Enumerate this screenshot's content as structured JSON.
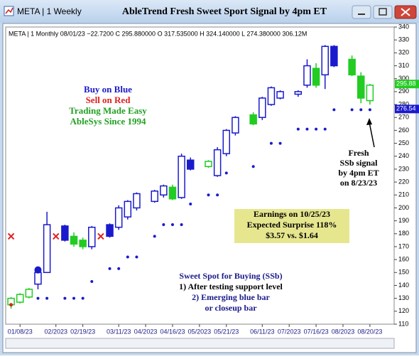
{
  "window_title": "META | 1 Weekly",
  "chart_data": {
    "type": "candlestick",
    "title": "AbleTrend Fresh Sweet Sport Signal by 4pm ET",
    "info": "META | 1 Monthly 08/01/23 −22.7200 C 295.880000 O 317.535000 H 324.140000 L 274.380000 306.12M",
    "xlim": [
      -0.6,
      42.7
    ],
    "xticks": [
      {
        "value": 1,
        "label": "01/08/23"
      },
      {
        "value": 5,
        "label": "02/2023"
      },
      {
        "value": 8,
        "label": "02/19/23"
      },
      {
        "value": 12,
        "label": "03/11/23"
      },
      {
        "value": 15,
        "label": "04/2023"
      },
      {
        "value": 18,
        "label": "04/16/23"
      },
      {
        "value": 21,
        "label": "05/2023"
      },
      {
        "value": 24,
        "label": "05/21/23"
      },
      {
        "value": 28,
        "label": "06/11/23"
      },
      {
        "value": 31,
        "label": "07/2023"
      },
      {
        "value": 34,
        "label": "07/16/23"
      },
      {
        "value": 37,
        "label": "08/2023"
      },
      {
        "value": 40,
        "label": "08/20/23"
      }
    ],
    "ylim": [
      110,
      340
    ],
    "yticks": [
      110,
      120,
      130,
      140,
      150,
      160,
      170,
      180,
      190,
      200,
      210,
      220,
      230,
      240,
      250,
      260,
      270,
      280,
      290,
      300,
      310,
      320,
      330,
      340
    ],
    "candles": [
      {
        "x": 0,
        "open": 125,
        "high": 131,
        "low": 122,
        "close": 130,
        "color": "#22cc22",
        "filled": false
      },
      {
        "x": 1,
        "open": 127,
        "high": 134,
        "low": 126,
        "close": 133,
        "color": "#22cc22",
        "filled": false
      },
      {
        "x": 2,
        "open": 131,
        "high": 138,
        "low": 130,
        "close": 137,
        "color": "#22cc22",
        "filled": false
      },
      {
        "x": 3,
        "open": 141,
        "high": 152,
        "low": 137,
        "close": 150,
        "color": "#1a1acc",
        "filled": false
      },
      {
        "x": 4,
        "open": 150,
        "high": 197,
        "low": 150,
        "close": 187,
        "color": "#1a1acc",
        "filled": false
      },
      {
        "x": 6,
        "open": 186,
        "high": 187,
        "low": 174,
        "close": 175,
        "color": "#1a1acc",
        "filled": true
      },
      {
        "x": 7,
        "open": 178,
        "high": 181,
        "low": 170,
        "close": 172,
        "color": "#22cc22",
        "filled": true
      },
      {
        "x": 8,
        "open": 175,
        "high": 177,
        "low": 168,
        "close": 170,
        "color": "#22cc22",
        "filled": true
      },
      {
        "x": 9,
        "open": 170,
        "high": 186,
        "low": 168,
        "close": 185,
        "color": "#1a1acc",
        "filled": false
      },
      {
        "x": 11,
        "open": 187,
        "high": 188,
        "low": 177,
        "close": 178,
        "color": "#1a1acc",
        "filled": true
      },
      {
        "x": 12,
        "open": 185,
        "high": 202,
        "low": 183,
        "close": 200,
        "color": "#1a1acc",
        "filled": false
      },
      {
        "x": 13,
        "open": 193,
        "high": 206,
        "low": 191,
        "close": 205,
        "color": "#1a1acc",
        "filled": false
      },
      {
        "x": 14,
        "open": 200,
        "high": 212,
        "low": 198,
        "close": 211,
        "color": "#1a1acc",
        "filled": false
      },
      {
        "x": 16,
        "open": 205,
        "high": 214,
        "low": 204,
        "close": 213,
        "color": "#1a1acc",
        "filled": false
      },
      {
        "x": 17,
        "open": 210,
        "high": 218,
        "low": 208,
        "close": 217,
        "color": "#1a1acc",
        "filled": false
      },
      {
        "x": 18,
        "open": 216,
        "high": 218,
        "low": 206,
        "close": 207,
        "color": "#22cc22",
        "filled": true
      },
      {
        "x": 19,
        "open": 208,
        "high": 242,
        "low": 207,
        "close": 240,
        "color": "#1a1acc",
        "filled": false
      },
      {
        "x": 20,
        "open": 237,
        "high": 239,
        "low": 229,
        "close": 230,
        "color": "#1a1acc",
        "filled": true
      },
      {
        "x": 22,
        "open": 232,
        "high": 237,
        "low": 231,
        "close": 236,
        "color": "#22cc22",
        "filled": false
      },
      {
        "x": 23,
        "open": 225,
        "high": 247,
        "low": 224,
        "close": 245,
        "color": "#1a1acc",
        "filled": false
      },
      {
        "x": 24,
        "open": 242,
        "high": 261,
        "low": 240,
        "close": 260,
        "color": "#1a1acc",
        "filled": false
      },
      {
        "x": 25,
        "open": 258,
        "high": 271,
        "low": 256,
        "close": 270,
        "color": "#1a1acc",
        "filled": false
      },
      {
        "x": 27,
        "open": 272,
        "high": 274,
        "low": 264,
        "close": 265,
        "color": "#22cc22",
        "filled": true
      },
      {
        "x": 28,
        "open": 270,
        "high": 286,
        "low": 268,
        "close": 285,
        "color": "#1a1acc",
        "filled": false
      },
      {
        "x": 29,
        "open": 280,
        "high": 294,
        "low": 279,
        "close": 293,
        "color": "#1a1acc",
        "filled": false
      },
      {
        "x": 30,
        "open": 285,
        "high": 291,
        "low": 284,
        "close": 290,
        "color": "#1a1acc",
        "filled": false
      },
      {
        "x": 32,
        "open": 288,
        "high": 291,
        "low": 286,
        "close": 290,
        "color": "#1a1acc",
        "filled": false
      },
      {
        "x": 33,
        "open": 295,
        "high": 315,
        "low": 293,
        "close": 310,
        "color": "#1a1acc",
        "filled": false
      },
      {
        "x": 34,
        "open": 308,
        "high": 312,
        "low": 293,
        "close": 295,
        "color": "#22cc22",
        "filled": true
      },
      {
        "x": 35,
        "open": 303,
        "high": 326,
        "low": 292,
        "close": 325,
        "color": "#1a1acc",
        "filled": false
      },
      {
        "x": 36,
        "open": 325,
        "high": 326,
        "low": 309,
        "close": 310,
        "color": "#1a1acc",
        "filled": true
      },
      {
        "x": 38,
        "open": 315,
        "high": 318,
        "low": 302,
        "close": 303,
        "color": "#22cc22",
        "filled": true
      },
      {
        "x": 39,
        "open": 302,
        "high": 305,
        "low": 281,
        "close": 285,
        "color": "#22cc22",
        "filled": true
      },
      {
        "x": 40,
        "open": 283,
        "high": 296,
        "low": 280,
        "close": 295,
        "color": "#22cc22",
        "filled": false
      }
    ],
    "dots": {
      "color": "#1a1acc",
      "points": [
        {
          "x": 3,
          "value": 130
        },
        {
          "x": 4,
          "value": 130
        },
        {
          "x": 6,
          "value": 130
        },
        {
          "x": 7,
          "value": 130
        },
        {
          "x": 8,
          "value": 130
        },
        {
          "x": 9,
          "value": 143
        },
        {
          "x": 11,
          "value": 153
        },
        {
          "x": 12,
          "value": 153
        },
        {
          "x": 13,
          "value": 162
        },
        {
          "x": 14,
          "value": 162
        },
        {
          "x": 16,
          "value": 178
        },
        {
          "x": 17,
          "value": 187
        },
        {
          "x": 18,
          "value": 187
        },
        {
          "x": 19,
          "value": 187
        },
        {
          "x": 20,
          "value": 203
        },
        {
          "x": 22,
          "value": 210
        },
        {
          "x": 23,
          "value": 210
        },
        {
          "x": 24,
          "value": 227
        },
        {
          "x": 27,
          "value": 232
        },
        {
          "x": 29,
          "value": 250
        },
        {
          "x": 30,
          "value": 250
        },
        {
          "x": 32,
          "value": 261
        },
        {
          "x": 33,
          "value": 261
        },
        {
          "x": 34,
          "value": 261
        },
        {
          "x": 35,
          "value": 261
        },
        {
          "x": 36,
          "value": 276
        },
        {
          "x": 38,
          "value": 276
        },
        {
          "x": 39,
          "value": 276
        },
        {
          "x": 40,
          "value": 276
        }
      ]
    },
    "sell_marks": {
      "color": "#e02020",
      "points": [
        {
          "x": 0,
          "value": 178
        },
        {
          "x": 5,
          "value": 178
        },
        {
          "x": 10,
          "value": 178
        }
      ]
    },
    "signal_dots": [
      {
        "x": 0,
        "value": 125,
        "color": "#e02020",
        "size": 2.5
      },
      {
        "x": 3,
        "value": 152,
        "color": "#1a1acc",
        "size": 5
      }
    ],
    "price_labels": [
      {
        "value": 295.88,
        "label": "295.88",
        "color": "#22cc22"
      },
      {
        "value": 276.54,
        "label": "276.54",
        "color": "#1a1acc"
      }
    ],
    "legend_lines": [
      "Buy on Blue",
      "Sell on Red",
      "Trading Made Easy",
      "AbleSys Since 1994"
    ],
    "fresh_note": [
      "Fresh",
      "SSb signal",
      "by 4pm ET",
      "on 8/23/23"
    ],
    "earnings_note": [
      "Earnings on 10/25/23",
      "Expected Surprise 118%",
      "$3.57 vs. $1.64"
    ],
    "sweet_note": [
      "Sweet Spot for Buying (SSb)",
      "1) After testing support level",
      "2) Emerging blue bar",
      "or closeup bar"
    ]
  }
}
